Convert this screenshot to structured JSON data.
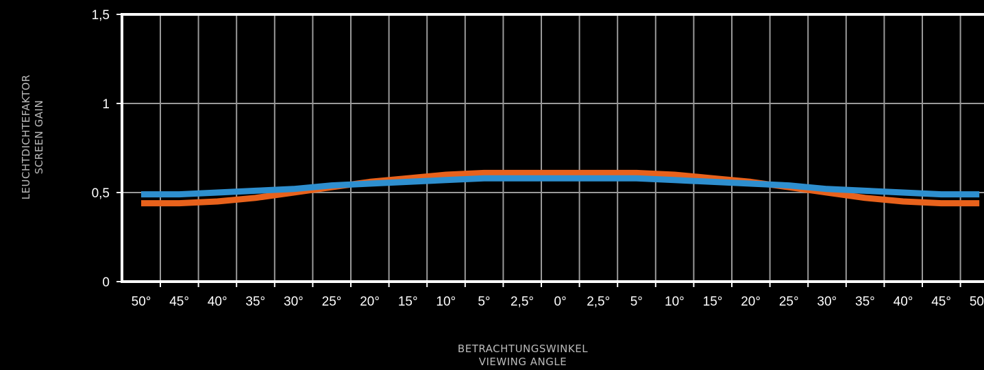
{
  "chart_data": {
    "type": "line",
    "x": [
      "50°",
      "45°",
      "40°",
      "35°",
      "30°",
      "25°",
      "20°",
      "15°",
      "10°",
      "5°",
      "2,5°",
      "0°",
      "2,5°",
      "5°",
      "10°",
      "15°",
      "20°",
      "25°",
      "30°",
      "35°",
      "40°",
      "45°",
      "50°"
    ],
    "series": [
      {
        "values": [
          0.44,
          0.44,
          0.45,
          0.47,
          0.5,
          0.53,
          0.56,
          0.58,
          0.6,
          0.61,
          0.61,
          0.61,
          0.61,
          0.61,
          0.6,
          0.58,
          0.56,
          0.53,
          0.5,
          0.47,
          0.45,
          0.44,
          0.44
        ],
        "color": "#e8621c"
      },
      {
        "values": [
          0.49,
          0.49,
          0.5,
          0.51,
          0.52,
          0.54,
          0.55,
          0.56,
          0.57,
          0.58,
          0.58,
          0.58,
          0.58,
          0.58,
          0.57,
          0.56,
          0.55,
          0.54,
          0.52,
          0.51,
          0.5,
          0.49,
          0.49
        ],
        "color": "#2e8fcf"
      }
    ],
    "y_ticks": [
      "0",
      "0,5",
      "1",
      "1,5"
    ],
    "y_tick_values": [
      0,
      0.5,
      1,
      1.5
    ],
    "ylim": [
      0,
      1.5
    ],
    "ylabel": [
      "LEUCHTDICHTEFAKTOR",
      "SCREEN GAIN"
    ],
    "xlabel": [
      "BETRACHTUNGSWINKEL",
      "VIEWING ANGLE"
    ],
    "grid": true,
    "colors": {
      "background": "#000000",
      "axes": "#ffffff",
      "grid": "#9a9a9a"
    }
  }
}
